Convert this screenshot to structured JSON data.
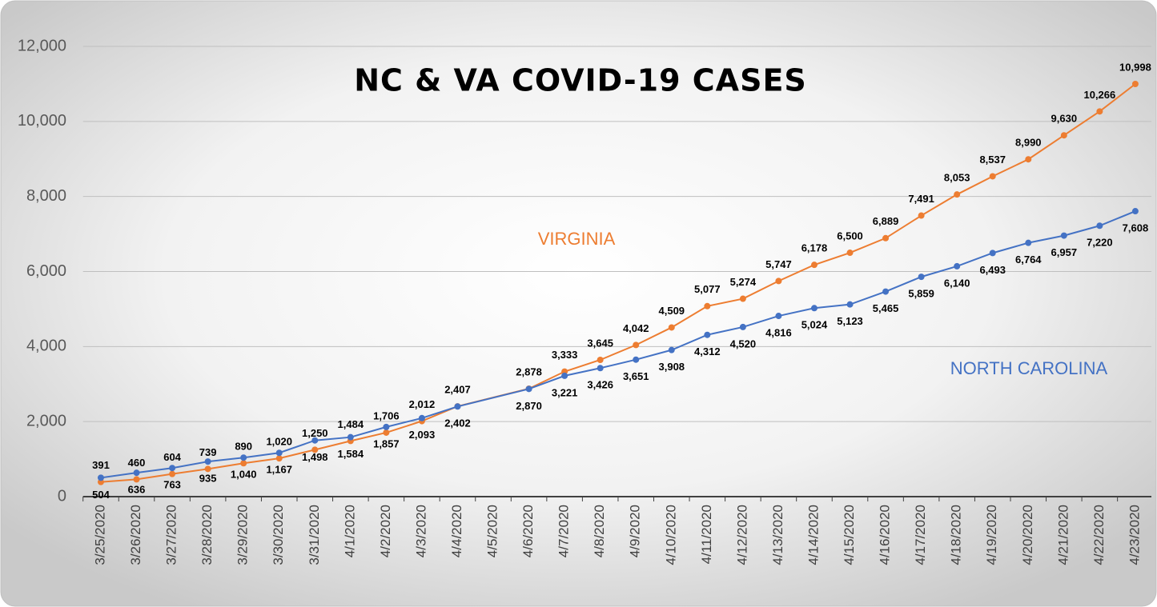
{
  "chart_data": {
    "type": "line",
    "title": "NC & VA COVID-19 CASES",
    "xticks": [
      "3/25/2020",
      "3/26/2020",
      "3/27/2020",
      "3/28/2020",
      "3/29/2020",
      "3/30/2020",
      "3/31/2020",
      "4/1/2020",
      "4/2/2020",
      "4/3/2020",
      "4/4/2020",
      "4/5/2020",
      "4/6/2020",
      "4/7/2020",
      "4/8/2020",
      "4/9/2020",
      "4/10/2020",
      "4/11/2020",
      "4/12/2020",
      "4/13/2020",
      "4/14/2020",
      "4/15/2020",
      "4/16/2020",
      "4/17/2020",
      "4/18/2020",
      "4/19/2020",
      "4/20/2020",
      "4/21/2020",
      "4/22/2020",
      "4/23/2020"
    ],
    "x": [
      "3/25/2020",
      "3/26/2020",
      "3/27/2020",
      "3/28/2020",
      "3/29/2020",
      "3/30/2020",
      "3/31/2020",
      "4/1/2020",
      "4/2/2020",
      "4/3/2020",
      "4/4/2020",
      "4/6/2020",
      "4/7/2020",
      "4/8/2020",
      "4/9/2020",
      "4/10/2020",
      "4/11/2020",
      "4/12/2020",
      "4/13/2020",
      "4/14/2020",
      "4/15/2020",
      "4/16/2020",
      "4/17/2020",
      "4/18/2020",
      "4/19/2020",
      "4/20/2020",
      "4/21/2020",
      "4/22/2020",
      "4/23/2020"
    ],
    "series": [
      {
        "name": "VIRGINIA",
        "color": "#ed7d31",
        "values": [
          391,
          460,
          604,
          739,
          890,
          1020,
          1250,
          1484,
          1706,
          2012,
          2407,
          2878,
          3333,
          3645,
          4042,
          4509,
          5077,
          5274,
          5747,
          6178,
          6500,
          6889,
          7491,
          8053,
          8537,
          8990,
          9630,
          10266,
          10998
        ],
        "value_labels": [
          "391",
          "460",
          "604",
          "739",
          "890",
          "1,020",
          "1,250",
          "1,484",
          "1,706",
          "2,012",
          "2,407",
          "2,878",
          "3,333",
          "3,645",
          "4,042",
          "4,509",
          "5,077",
          "5,274",
          "5,747",
          "6,178",
          "6,500",
          "6,889",
          "7,491",
          "8,053",
          "8,537",
          "8,990",
          "9,630",
          "10,266",
          "10,998"
        ]
      },
      {
        "name": "NORTH CAROLINA",
        "color": "#4472c4",
        "values": [
          504,
          636,
          763,
          935,
          1040,
          1167,
          1498,
          1584,
          1857,
          2093,
          2402,
          2870,
          3221,
          3426,
          3651,
          3908,
          4312,
          4520,
          4816,
          5024,
          5123,
          5465,
          5859,
          6140,
          6493,
          6764,
          6957,
          7220,
          7608
        ],
        "value_labels": [
          "504",
          "636",
          "763",
          "935",
          "1,040",
          "1,167",
          "1,498",
          "1,584",
          "1,857",
          "2,093",
          "2,402",
          "2,870",
          "3,221",
          "3,426",
          "3,651",
          "3,908",
          "4,312",
          "4,520",
          "4,816",
          "5,024",
          "5,123",
          "5,465",
          "5,859",
          "6,140",
          "6,493",
          "6,764",
          "6,957",
          "7,220",
          "7,608"
        ]
      }
    ],
    "ylim": [
      0,
      12000
    ],
    "yticks": [
      0,
      {
        "value": 2000,
        "label": "2,000"
      },
      {
        "value": 4000,
        "label": "4,000"
      },
      {
        "value": 6000,
        "label": "6,000"
      },
      {
        "value": 8000,
        "label": "8,000"
      },
      {
        "value": 10000,
        "label": "10,000"
      },
      {
        "value": 12000,
        "label": "12,000"
      }
    ],
    "grid": true
  }
}
